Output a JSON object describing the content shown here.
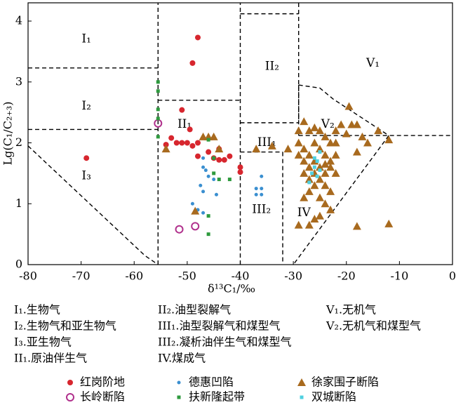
{
  "chart_data": {
    "type": "scatter",
    "xlabel": "δ¹³C₁/‰",
    "ylabel": "Lg(C₁/C₂₊₃)",
    "xlim": [
      -80,
      0
    ],
    "ylim": [
      0,
      4.3
    ],
    "xticks": [
      -80,
      -70,
      -60,
      -50,
      -40,
      -30,
      -20,
      -10,
      0
    ],
    "yticks": [
      0,
      1,
      2,
      3,
      4
    ],
    "boundaries": [
      {
        "x": [
          -55.5,
          -55.5
        ],
        "y": [
          0,
          4.3
        ]
      },
      {
        "x": [
          -40,
          -40
        ],
        "y": [
          0,
          4.3
        ]
      },
      {
        "x": [
          -80,
          -55.5
        ],
        "y": [
          3.23,
          3.23
        ]
      },
      {
        "x": [
          -80,
          -55.5
        ],
        "y": [
          2.22,
          2.22
        ]
      },
      {
        "x": [
          -55.5,
          -40
        ],
        "y": [
          2.7,
          2.7
        ]
      },
      {
        "x": [
          -40,
          -29
        ],
        "y": [
          4.12,
          4.12
        ]
      },
      {
        "x": [
          -29,
          -29
        ],
        "y": [
          4.3,
          2.33
        ]
      },
      {
        "x": [
          -40,
          -29
        ],
        "y": [
          2.33,
          2.33
        ]
      },
      {
        "x": [
          -40,
          -32
        ],
        "y": [
          1.85,
          1.85
        ]
      },
      {
        "x": [
          -32,
          -32
        ],
        "y": [
          1.85,
          0
        ]
      },
      {
        "x": [
          -29,
          -29
        ],
        "y": [
          2.95,
          2.12
        ]
      },
      {
        "x": [
          -29,
          -25,
          -22.5,
          -12
        ],
        "y": [
          2.95,
          2.9,
          2.72,
          2.12
        ]
      },
      {
        "x": [
          -29,
          0
        ],
        "y": [
          2.12,
          2.12
        ]
      },
      {
        "x": [
          -12,
          -30
        ],
        "y": [
          2.12,
          0
        ]
      },
      {
        "x": [
          -80,
          -58,
          -55.5
        ],
        "y": [
          1.95,
          0.15,
          0
        ]
      }
    ],
    "region_labels": [
      {
        "text": "I₁",
        "x": -69,
        "y": 3.7
      },
      {
        "text": "I₂",
        "x": -69,
        "y": 2.6
      },
      {
        "text": "I₃",
        "x": -69,
        "y": 1.45
      },
      {
        "text": "II₁",
        "x": -50.5,
        "y": 2.3
      },
      {
        "text": "II₂",
        "x": -34,
        "y": 3.25
      },
      {
        "text": "III₁",
        "x": -35,
        "y": 2.0
      },
      {
        "text": "III₂",
        "x": -36,
        "y": 0.9
      },
      {
        "text": "IV",
        "x": -28,
        "y": 0.85
      },
      {
        "text": "V₁",
        "x": -15,
        "y": 3.3
      },
      {
        "text": "V₂",
        "x": -23.5,
        "y": 2.3
      }
    ],
    "region_legend": [
      [
        "I₁.生物气",
        "I₂.生物气和亚生物气",
        "I₃.亚生物气",
        "II₁.原油伴生气"
      ],
      [
        "II₂.油型裂解气",
        "III₁.油型裂解气和煤型气",
        "III₂.凝析油伴生气和煤型气",
        "IV.煤成气"
      ],
      [
        "V₁.无机气",
        "V₂.无机气和煤型气"
      ]
    ],
    "series": [
      {
        "name": "红岗阶地",
        "color": "#d7262e",
        "marker": "circle",
        "x": [
          -69,
          -48,
          -49,
          -51,
          -49.5,
          -53,
          -52,
          -51,
          -50,
          -49,
          -48,
          -54,
          -46,
          -45,
          -44,
          -43,
          -44,
          -42,
          -40,
          -40,
          -48
        ],
        "y": [
          1.75,
          3.73,
          3.31,
          2.54,
          2.22,
          2.08,
          2.0,
          2.0,
          2.0,
          1.95,
          2.0,
          1.97,
          1.85,
          1.75,
          1.72,
          1.72,
          1.9,
          1.78,
          1.6,
          1.52,
          1.78
        ]
      },
      {
        "name": "德惠凹陷",
        "color": "#3a8fd0",
        "marker": "dot",
        "x": [
          -47,
          -47,
          -46.5,
          -46,
          -47.5,
          -47,
          -45,
          -44.5,
          -37,
          -36,
          -37,
          -36,
          -36,
          -49,
          -48,
          -47
        ],
        "y": [
          1.75,
          1.6,
          1.55,
          1.45,
          1.3,
          1.2,
          1.4,
          1.15,
          1.25,
          1.25,
          1.15,
          1.15,
          1.45,
          1.0,
          0.9,
          0.85
        ]
      },
      {
        "name": "徐家围子断陷",
        "color": "#a86a1e",
        "marker": "triangle",
        "x": [
          -54,
          -47,
          -46,
          -45,
          -44,
          -37,
          -34,
          -31,
          -29,
          -29,
          -28,
          -27,
          -26,
          -25,
          -24,
          -23,
          -22,
          -21,
          -20,
          -19.5,
          -19,
          -18,
          -17,
          -16,
          -14,
          -12,
          -18,
          -22,
          -23,
          -24,
          -25,
          -26,
          -27,
          -28,
          -24,
          -23,
          -25,
          -29,
          -27,
          -26,
          -18,
          -12,
          -48.5,
          -28,
          -27,
          -26,
          -25,
          -24,
          -26,
          -27,
          -25,
          -23,
          -28,
          -29,
          -26,
          -24,
          -22,
          -23,
          -25,
          -27,
          -28,
          -22,
          -24
        ],
        "y": [
          1.9,
          2.1,
          2.1,
          2.1,
          1.9,
          1.9,
          1.95,
          1.9,
          2.0,
          2.2,
          2.35,
          2.2,
          2.25,
          2.2,
          2.1,
          2.0,
          2.2,
          2.3,
          2.15,
          2.6,
          2.3,
          2.3,
          2.1,
          2.0,
          2.2,
          2.05,
          1.85,
          1.8,
          1.6,
          1.5,
          1.4,
          1.3,
          1.2,
          1.1,
          1.0,
          0.9,
          0.8,
          0.65,
          0.65,
          0.75,
          0.63,
          0.67,
          0.88,
          1.9,
          1.8,
          1.7,
          1.9,
          1.8,
          2.0,
          1.6,
          1.6,
          1.7,
          1.7,
          1.8,
          1.5,
          1.3,
          1.5,
          1.2,
          1.1,
          1.4,
          1.5,
          2.0,
          1.65
        ]
      },
      {
        "name": "长岭断陷",
        "color": "#b0308c",
        "marker": "open-circle",
        "x": [
          -55.5,
          -51.5,
          -48.5
        ],
        "y": [
          2.32,
          0.58,
          0.63
        ]
      },
      {
        "name": "扶新隆起带",
        "color": "#2e9a3e",
        "marker": "square",
        "x": [
          -55.5,
          -55.5,
          -55.5,
          -55.5,
          -55.5,
          -46,
          -45,
          -45,
          -44,
          -42,
          -46,
          -46
        ],
        "y": [
          3.0,
          2.85,
          2.55,
          2.1,
          2.4,
          2.05,
          1.75,
          1.5,
          1.4,
          1.4,
          0.5,
          0.8
        ]
      },
      {
        "name": "双城断陷",
        "color": "#4fd0e0",
        "marker": "square",
        "x": [
          -26,
          -25.5,
          -26,
          -25,
          -26.5,
          -25.5,
          -27,
          -25
        ],
        "y": [
          1.75,
          1.7,
          1.6,
          1.55,
          1.5,
          1.45,
          1.35,
          1.85
        ]
      }
    ]
  }
}
